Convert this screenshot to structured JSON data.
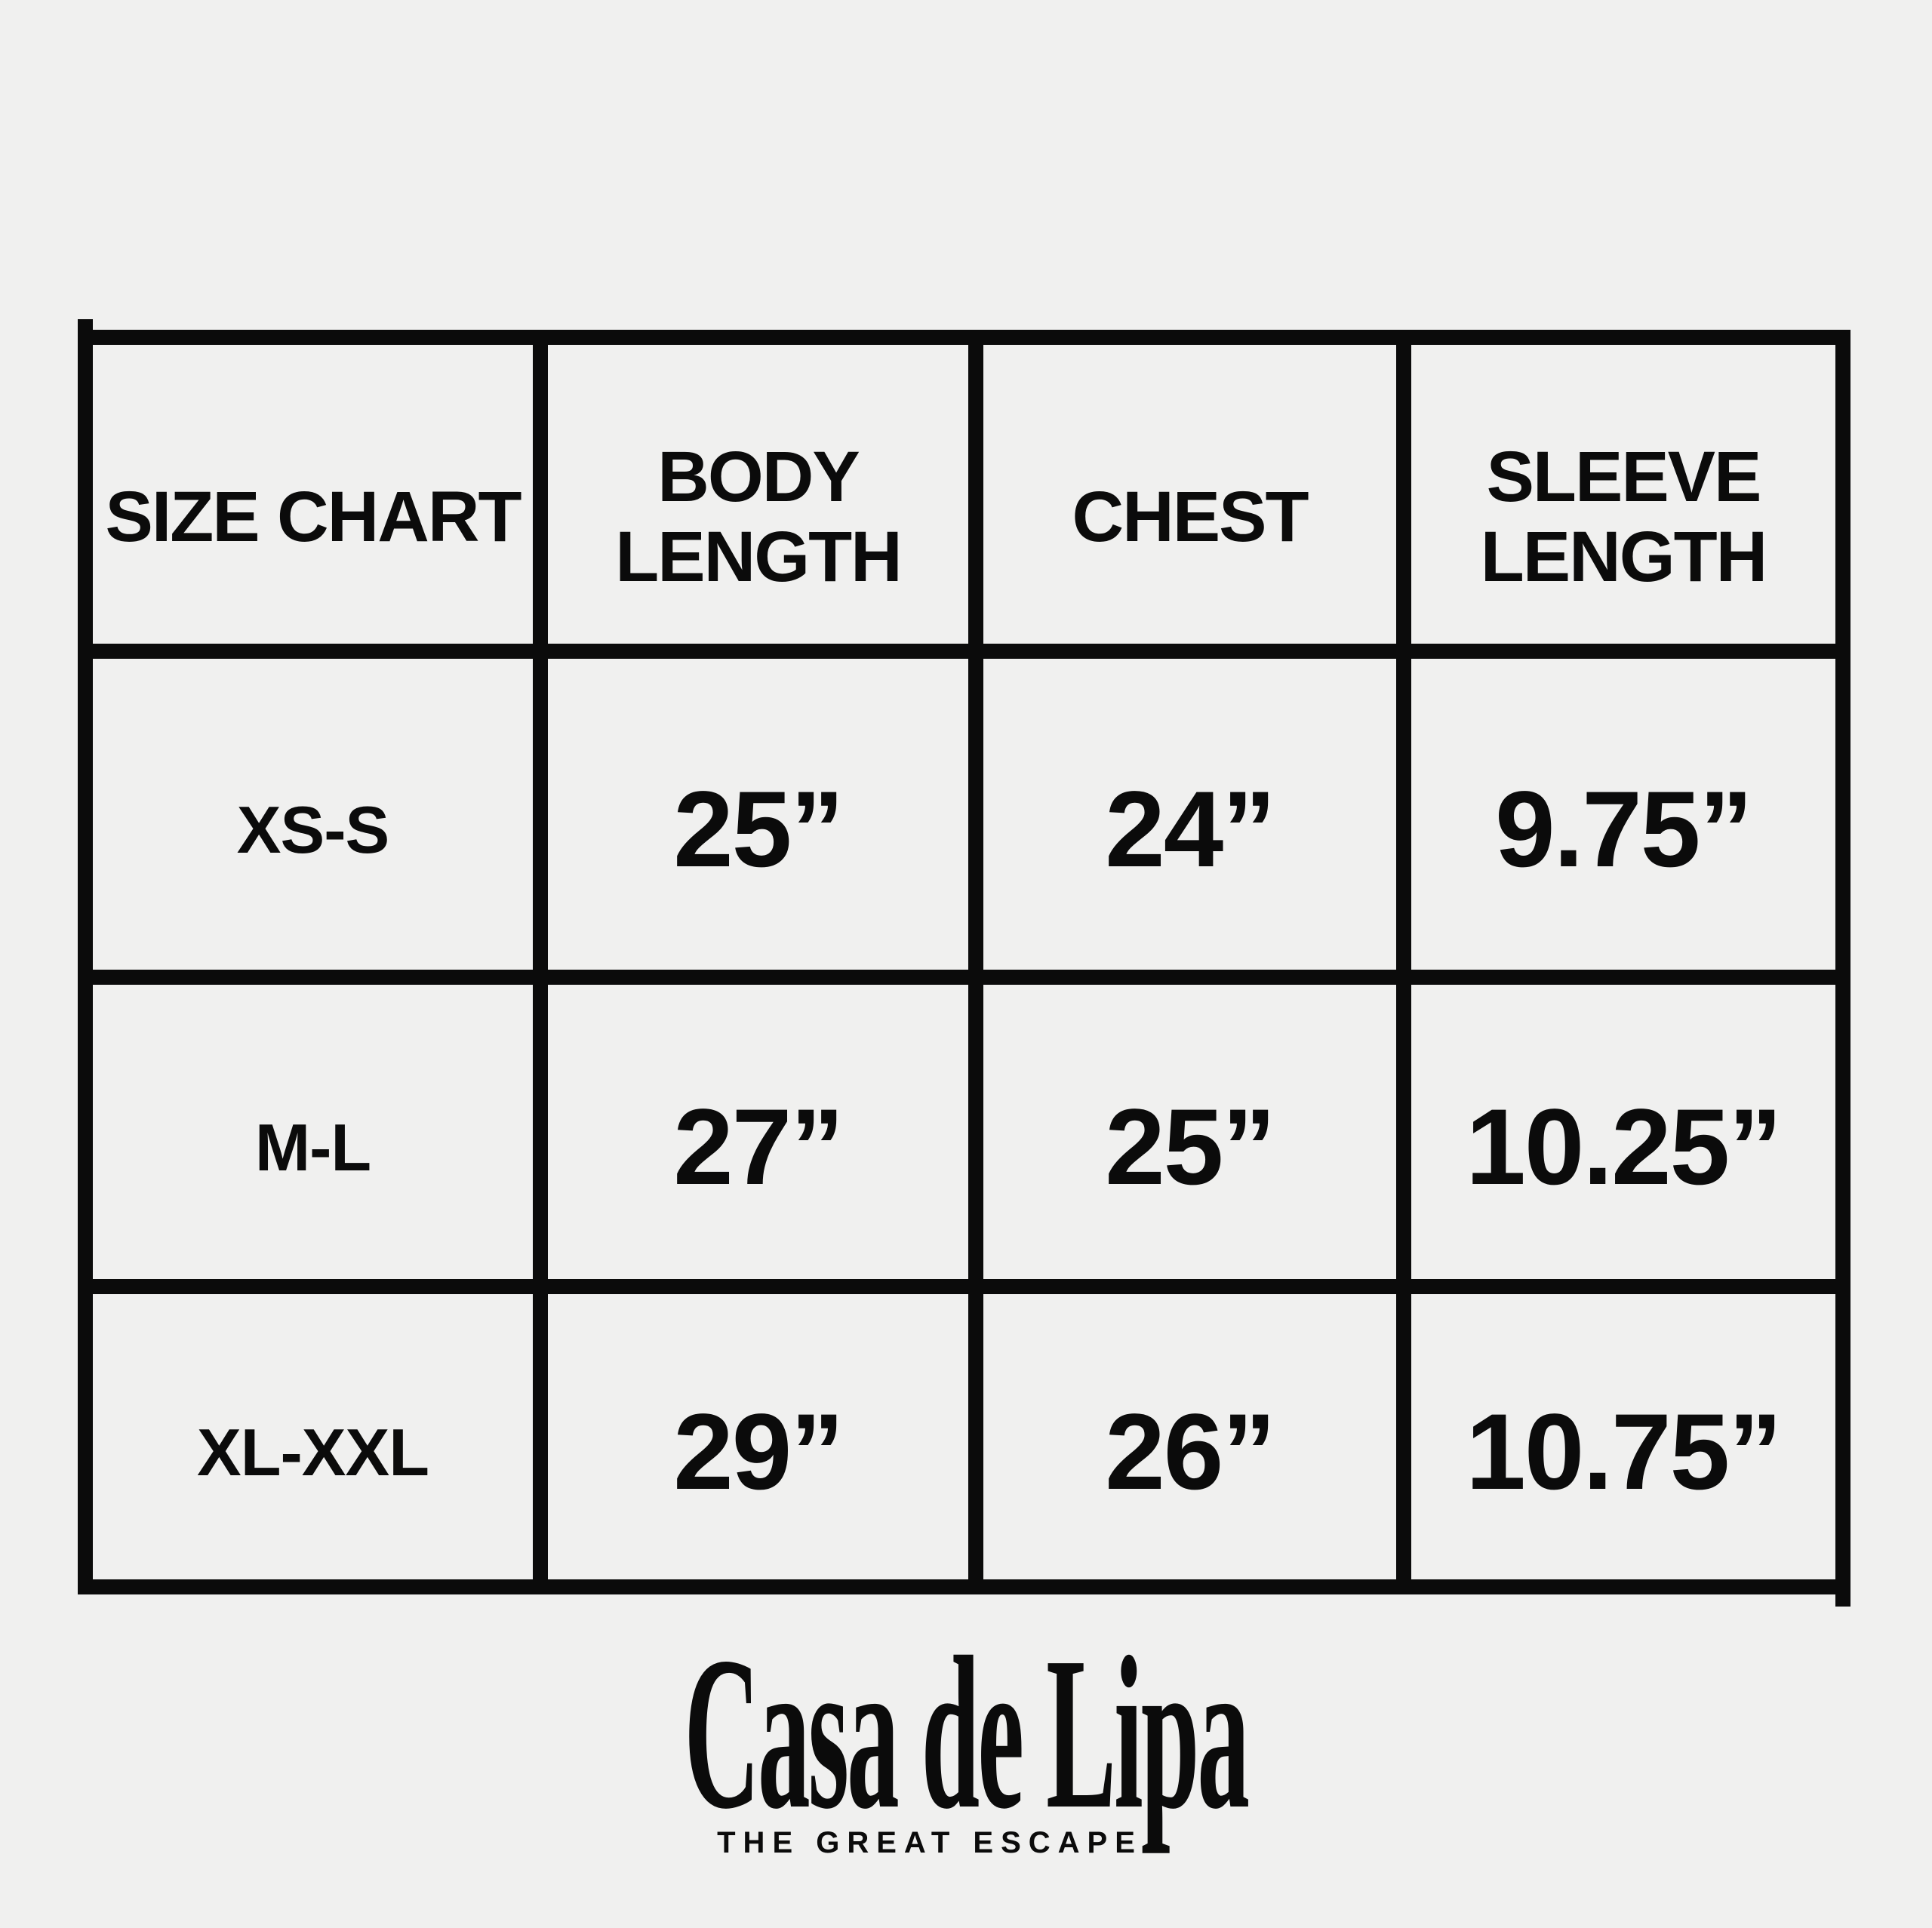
{
  "chart_data": {
    "type": "table",
    "title": "SIZE CHART",
    "columns": [
      "SIZE CHART",
      "BODY LENGTH",
      "CHEST",
      "SLEEVE LENGTH"
    ],
    "rows": [
      [
        "XS-S",
        "25”",
        "24”",
        "9.75”"
      ],
      [
        "M-L",
        "27”",
        "25”",
        "10.25”"
      ],
      [
        "XL-XXL",
        "29”",
        "26”",
        "10.75”"
      ]
    ],
    "layout": {
      "grid": "on",
      "grid_color": "#0b0b0b",
      "cell_background": "#f0f0ef"
    }
  },
  "brand": {
    "wordmark": "Casa de Lipa",
    "tagline": "THE GREAT ESCAPE"
  },
  "colors": {
    "background": "#f0f0ef",
    "ink": "#0b0b0b"
  }
}
